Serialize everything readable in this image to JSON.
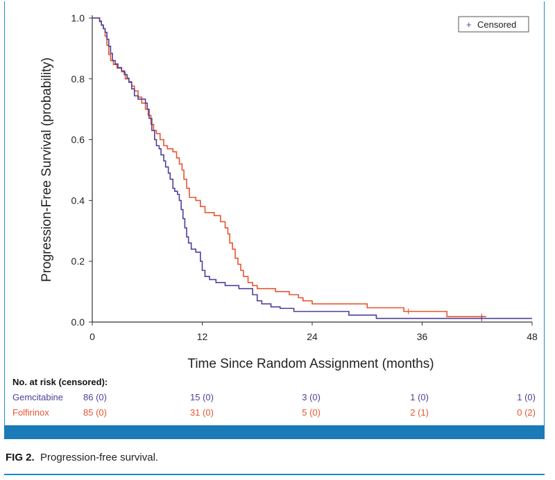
{
  "chart_data": {
    "type": "line",
    "subtype": "kaplan-meier",
    "xlabel": "Time Since Random Assignment (months)",
    "ylabel": "Progression-Free Survival (probability)",
    "xlim": [
      0,
      48
    ],
    "ylim": [
      0,
      1
    ],
    "xticks": [
      0,
      12,
      24,
      36,
      48
    ],
    "xtick_labels": [
      "0",
      "12",
      "24",
      "36",
      "48"
    ],
    "yticks": [
      0.0,
      0.2,
      0.4,
      0.6,
      0.8,
      1.0
    ],
    "ytick_labels": [
      "0.0",
      "0.2",
      "0.4",
      "0.6",
      "0.8",
      "1.0"
    ],
    "legend": {
      "position": "top-right",
      "label": "Censored",
      "marker": "+"
    },
    "series": [
      {
        "name": "Gemcitabine",
        "color": "#4b3f9a",
        "steps": [
          [
            0,
            1.0
          ],
          [
            0.8,
            0.99
          ],
          [
            1.0,
            0.977
          ],
          [
            1.2,
            0.965
          ],
          [
            1.4,
            0.953
          ],
          [
            1.6,
            0.93
          ],
          [
            1.8,
            0.907
          ],
          [
            2.0,
            0.884
          ],
          [
            2.2,
            0.86
          ],
          [
            2.5,
            0.849
          ],
          [
            2.8,
            0.837
          ],
          [
            3.2,
            0.826
          ],
          [
            3.5,
            0.814
          ],
          [
            3.8,
            0.802
          ],
          [
            4.0,
            0.79
          ],
          [
            4.3,
            0.767
          ],
          [
            4.6,
            0.744
          ],
          [
            5.0,
            0.733
          ],
          [
            5.5,
            0.733
          ],
          [
            5.8,
            0.72
          ],
          [
            6.0,
            0.7
          ],
          [
            6.2,
            0.67
          ],
          [
            6.5,
            0.63
          ],
          [
            6.8,
            0.6
          ],
          [
            7.0,
            0.58
          ],
          [
            7.3,
            0.57
          ],
          [
            7.5,
            0.55
          ],
          [
            7.8,
            0.53
          ],
          [
            8.0,
            0.51
          ],
          [
            8.3,
            0.49
          ],
          [
            8.5,
            0.47
          ],
          [
            8.8,
            0.44
          ],
          [
            9.0,
            0.43
          ],
          [
            9.3,
            0.42
          ],
          [
            9.5,
            0.4
          ],
          [
            9.7,
            0.37
          ],
          [
            9.9,
            0.34
          ],
          [
            10.1,
            0.31
          ],
          [
            10.3,
            0.28
          ],
          [
            10.5,
            0.26
          ],
          [
            10.8,
            0.24
          ],
          [
            11.3,
            0.23
          ],
          [
            11.8,
            0.2
          ],
          [
            12.0,
            0.17
          ],
          [
            12.3,
            0.15
          ],
          [
            12.8,
            0.14
          ],
          [
            13.5,
            0.13
          ],
          [
            14.5,
            0.12
          ],
          [
            16.0,
            0.11
          ],
          [
            17.5,
            0.09
          ],
          [
            18.0,
            0.07
          ],
          [
            18.5,
            0.06
          ],
          [
            19.5,
            0.05
          ],
          [
            20.5,
            0.045
          ],
          [
            22.0,
            0.035
          ],
          [
            24.0,
            0.035
          ],
          [
            27.5,
            0.035
          ],
          [
            28.0,
            0.023
          ],
          [
            30.0,
            0.023
          ],
          [
            31.0,
            0.012
          ],
          [
            48.0,
            0.012
          ]
        ],
        "censored": [
          [
            42.5,
            0.012
          ]
        ],
        "at_risk": [
          "86 (0)",
          "15 (0)",
          "3 (0)",
          "1 (0)",
          "1 (0)"
        ]
      },
      {
        "name": "Folfirinox",
        "color": "#e8532f",
        "steps": [
          [
            0,
            1.0
          ],
          [
            0.8,
            0.988
          ],
          [
            1.0,
            0.976
          ],
          [
            1.2,
            0.965
          ],
          [
            1.4,
            0.94
          ],
          [
            1.6,
            0.91
          ],
          [
            1.8,
            0.88
          ],
          [
            2.0,
            0.86
          ],
          [
            2.3,
            0.847
          ],
          [
            2.7,
            0.835
          ],
          [
            3.2,
            0.823
          ],
          [
            3.6,
            0.8
          ],
          [
            4.0,
            0.788
          ],
          [
            4.3,
            0.776
          ],
          [
            4.6,
            0.76
          ],
          [
            5.0,
            0.74
          ],
          [
            5.4,
            0.72
          ],
          [
            5.8,
            0.7
          ],
          [
            6.1,
            0.68
          ],
          [
            6.4,
            0.65
          ],
          [
            6.7,
            0.63
          ],
          [
            7.0,
            0.62
          ],
          [
            7.4,
            0.6
          ],
          [
            7.8,
            0.58
          ],
          [
            8.2,
            0.57
          ],
          [
            8.8,
            0.56
          ],
          [
            9.2,
            0.54
          ],
          [
            9.5,
            0.52
          ],
          [
            9.8,
            0.5
          ],
          [
            10.0,
            0.47
          ],
          [
            10.3,
            0.44
          ],
          [
            10.6,
            0.41
          ],
          [
            11.3,
            0.4
          ],
          [
            11.8,
            0.38
          ],
          [
            12.3,
            0.36
          ],
          [
            13.3,
            0.35
          ],
          [
            14.0,
            0.33
          ],
          [
            14.5,
            0.31
          ],
          [
            14.8,
            0.29
          ],
          [
            15.0,
            0.26
          ],
          [
            15.3,
            0.24
          ],
          [
            15.6,
            0.21
          ],
          [
            15.9,
            0.19
          ],
          [
            16.2,
            0.17
          ],
          [
            16.5,
            0.15
          ],
          [
            17.0,
            0.13
          ],
          [
            17.5,
            0.12
          ],
          [
            18.0,
            0.11
          ],
          [
            18.5,
            0.11
          ],
          [
            20.0,
            0.1
          ],
          [
            21.5,
            0.09
          ],
          [
            22.5,
            0.08
          ],
          [
            23.0,
            0.07
          ],
          [
            24.0,
            0.06
          ],
          [
            29.5,
            0.06
          ],
          [
            30.0,
            0.047
          ],
          [
            33.0,
            0.047
          ],
          [
            34.0,
            0.035
          ],
          [
            38.5,
            0.035
          ],
          [
            38.7,
            0.018
          ],
          [
            42.0,
            0.018
          ],
          [
            43.0,
            0.018
          ]
        ],
        "censored": [
          [
            34.5,
            0.035
          ],
          [
            42.5,
            0.018
          ]
        ],
        "at_risk": [
          "85 (0)",
          "31 (0)",
          "5 (0)",
          "2 (1)",
          "0 (2)"
        ]
      }
    ]
  },
  "risk_table": {
    "title": "No. at risk (censored):",
    "rows": [
      {
        "label": "Gemcitabine",
        "color": "#4b3f9a",
        "values": [
          "86 (0)",
          "15 (0)",
          "3 (0)",
          "1 (0)",
          "1 (0)"
        ]
      },
      {
        "label": "Folfirinox",
        "color": "#e8532f",
        "values": [
          "85 (0)",
          "31 (0)",
          "5 (0)",
          "2 (1)",
          "0 (2)"
        ]
      }
    ]
  },
  "caption": {
    "label": "FIG 2.",
    "text": "Progression-free survival."
  },
  "colors": {
    "frame": "#1a8ac4",
    "bar": "#1a7bb8"
  }
}
